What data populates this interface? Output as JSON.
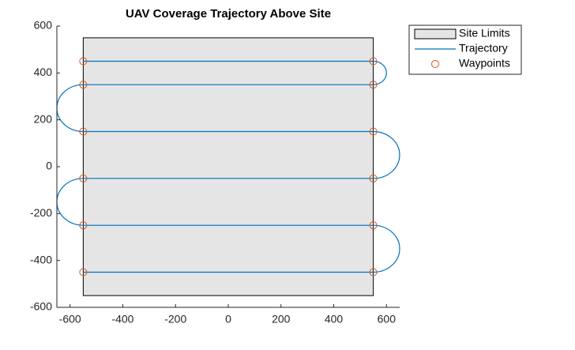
{
  "chart_data": {
    "type": "line",
    "title": "UAV Coverage Trajectory Above Site",
    "xlim": [
      -650,
      650
    ],
    "ylim": [
      -600,
      600
    ],
    "xticks": [
      -600,
      -400,
      -200,
      0,
      200,
      400,
      600
    ],
    "yticks": [
      -600,
      -400,
      -200,
      0,
      200,
      400,
      600
    ],
    "legend": "northeast outside",
    "series": [
      {
        "name": "Site Limits",
        "kind": "patch",
        "color": "#e5e5e5",
        "edgecolor": "#000000",
        "x": [
          -550,
          550,
          550,
          -550
        ],
        "y": [
          -550,
          -550,
          550,
          550
        ]
      },
      {
        "name": "Trajectory",
        "kind": "line",
        "color": "#0072bd",
        "x": [
          -550,
          550,
          550,
          -550,
          -550,
          550,
          550,
          -550,
          -550,
          550,
          550,
          -550
        ],
        "y": [
          450,
          450,
          350,
          350,
          150,
          150,
          -50,
          -50,
          -250,
          -250,
          -450,
          -450
        ]
      },
      {
        "name": "Waypoints",
        "kind": "marker",
        "color": "#d95319",
        "x": [
          -550,
          550,
          550,
          -550,
          -550,
          550,
          550,
          -550,
          -550,
          550,
          550,
          -550
        ],
        "y": [
          450,
          450,
          350,
          350,
          150,
          150,
          -50,
          -50,
          -250,
          -250,
          -450,
          -450
        ]
      }
    ]
  }
}
